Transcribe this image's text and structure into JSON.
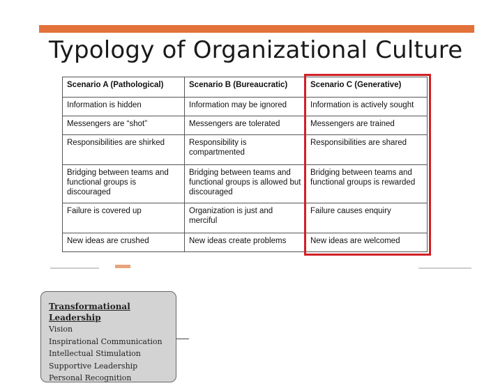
{
  "slide": {
    "title": "Typology of Organizational Culture",
    "accent_color": "#e2723a",
    "highlight_color": "#d21f26"
  },
  "table": {
    "headers": [
      "Scenario A (Pathological)",
      "Scenario B (Bureaucratic)",
      "Scenario C (Generative)"
    ],
    "rows": [
      [
        "Information is hidden",
        "Information may be ignored",
        "Information is actively sought"
      ],
      [
        "Messengers are “shot”",
        "Messengers are tolerated",
        "Messengers are trained"
      ],
      [
        "Responsibilities are shirked",
        "Responsibility is compartmented",
        "Responsibilities are shared"
      ],
      [
        "Bridging between teams and functional groups is discouraged",
        "Bridging between teams and functional groups is allowed but discouraged",
        "Bridging between teams and functional groups is rewarded"
      ],
      [
        "Failure is covered up",
        "Organization is just and merciful",
        "Failure causes enquiry"
      ],
      [
        "New ideas are crushed",
        "New ideas create problems",
        "New ideas are welcomed"
      ]
    ]
  },
  "note": {
    "title": "Transformational Leadership",
    "items": [
      "Vision",
      "Inspirational Communication",
      "Intellectual Stimulation",
      "Supportive Leadership",
      "Personal Recognition"
    ]
  }
}
